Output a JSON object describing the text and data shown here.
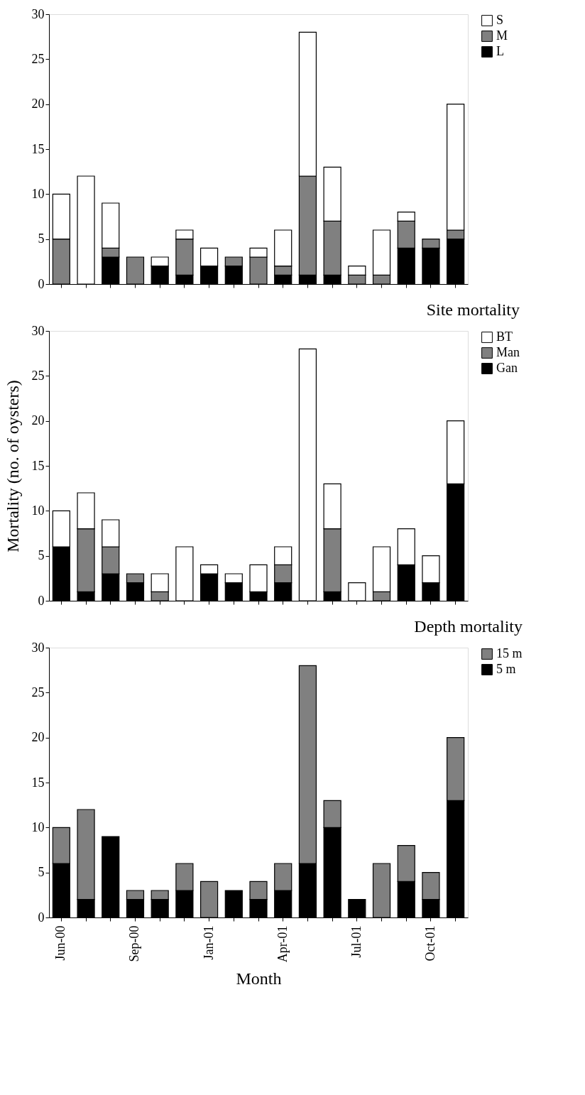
{
  "chart_data": [
    {
      "type": "bar",
      "stacked": true,
      "categories": [
        null,
        null,
        null,
        null,
        null,
        null,
        null,
        null,
        null,
        null,
        null,
        null,
        null,
        null,
        null,
        null,
        null
      ],
      "ylim": [
        0,
        30
      ],
      "yticks": [
        0,
        5,
        10,
        15,
        20,
        25,
        30
      ],
      "tick_labels": "y",
      "grid": false,
      "legend": "right",
      "series": [
        {
          "name": "L",
          "color": "#000000",
          "values": [
            0,
            0,
            3,
            0,
            2,
            1,
            2,
            2,
            0,
            1,
            1,
            1,
            0,
            0,
            4,
            4,
            5
          ]
        },
        {
          "name": "M",
          "color": "#808080",
          "values": [
            5,
            0,
            1,
            3,
            0,
            4,
            0,
            1,
            3,
            1,
            11,
            6,
            1,
            1,
            3,
            1,
            1
          ]
        },
        {
          "name": "S",
          "color": "#ffffff",
          "values": [
            5,
            12,
            5,
            0,
            1,
            1,
            2,
            0,
            1,
            4,
            16,
            6,
            1,
            5,
            1,
            0,
            14
          ]
        }
      ]
    },
    {
      "type": "bar",
      "stacked": true,
      "title": "Site mortality",
      "ylabel": "Mortality (no. of oysters)",
      "categories": [
        null,
        null,
        null,
        null,
        null,
        null,
        null,
        null,
        null,
        null,
        null,
        null,
        null,
        null,
        null,
        null,
        null
      ],
      "ylim": [
        0,
        30
      ],
      "yticks": [
        0,
        5,
        10,
        15,
        20,
        25,
        30
      ],
      "tick_labels": "y",
      "grid": false,
      "legend": "right",
      "series": [
        {
          "name": "Gan",
          "color": "#000000",
          "values": [
            6,
            1,
            3,
            2,
            0,
            0,
            3,
            2,
            1,
            2,
            0,
            1,
            0,
            0,
            4,
            2,
            13
          ]
        },
        {
          "name": "Man",
          "color": "#808080",
          "values": [
            0,
            7,
            3,
            1,
            1,
            0,
            0,
            0,
            0,
            2,
            0,
            7,
            0,
            1,
            0,
            0,
            0
          ]
        },
        {
          "name": "BT",
          "color": "#ffffff",
          "values": [
            4,
            4,
            3,
            0,
            2,
            6,
            1,
            1,
            3,
            2,
            28,
            5,
            2,
            5,
            4,
            3,
            7
          ]
        }
      ]
    },
    {
      "type": "bar",
      "stacked": true,
      "title": "Depth mortality",
      "xlabel": "Month",
      "categories": [
        "Jun-00",
        null,
        null,
        "Sep-00",
        null,
        null,
        "Jan-01",
        null,
        null,
        "Apr-01",
        null,
        null,
        "Jul-01",
        null,
        null,
        "Oct-01",
        null
      ],
      "ylim": [
        0,
        30
      ],
      "yticks": [
        0,
        5,
        10,
        15,
        20,
        25,
        30
      ],
      "grid": false,
      "legend": "right",
      "series": [
        {
          "name": "5 m",
          "color": "#000000",
          "values": [
            6,
            2,
            9,
            2,
            2,
            3,
            0,
            3,
            2,
            3,
            6,
            10,
            2,
            0,
            4,
            2,
            13
          ]
        },
        {
          "name": "15 m",
          "color": "#808080",
          "values": [
            4,
            10,
            0,
            1,
            1,
            3,
            4,
            0,
            2,
            3,
            22,
            3,
            0,
            6,
            4,
            3,
            7
          ]
        }
      ]
    }
  ]
}
